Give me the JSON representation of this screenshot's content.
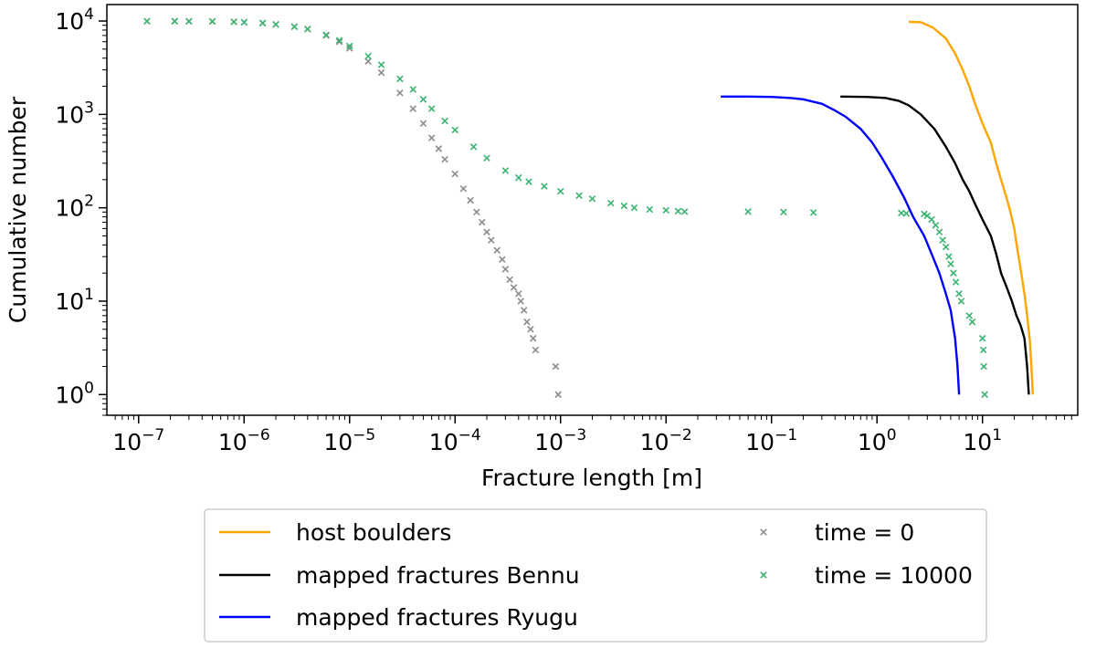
{
  "chart_data": {
    "type": "line",
    "title": "",
    "xlabel": "Fracture length [m]",
    "ylabel": "Cumulative number",
    "xscale": "log",
    "yscale": "log",
    "xlim": [
      5e-08,
      80
    ],
    "ylim": [
      0.6,
      15000
    ],
    "x_ticks": [
      {
        "value": 1e-07,
        "base": "10",
        "exp": "−7"
      },
      {
        "value": 1e-06,
        "base": "10",
        "exp": "−6"
      },
      {
        "value": 1e-05,
        "base": "10",
        "exp": "−5"
      },
      {
        "value": 0.0001,
        "base": "10",
        "exp": "−4"
      },
      {
        "value": 0.001,
        "base": "10",
        "exp": "−3"
      },
      {
        "value": 0.01,
        "base": "10",
        "exp": "−2"
      },
      {
        "value": 0.1,
        "base": "10",
        "exp": "−1"
      },
      {
        "value": 1,
        "base": "10",
        "exp": "0"
      },
      {
        "value": 10,
        "base": "10",
        "exp": "1"
      }
    ],
    "y_ticks": [
      {
        "value": 1,
        "base": "10",
        "exp": "0"
      },
      {
        "value": 10,
        "base": "10",
        "exp": "1"
      },
      {
        "value": 100,
        "base": "10",
        "exp": "2"
      },
      {
        "value": 1000,
        "base": "10",
        "exp": "3"
      },
      {
        "value": 10000,
        "base": "10",
        "exp": "4"
      }
    ],
    "grid": false,
    "legend_position": "below",
    "series": [
      {
        "name": "host boulders",
        "kind": "line",
        "color": "#ffa500",
        "points": [
          [
            2.0,
            9800
          ],
          [
            2.6,
            9700
          ],
          [
            3.4,
            8500
          ],
          [
            4.5,
            6500
          ],
          [
            5.5,
            4500
          ],
          [
            6.5,
            3000
          ],
          [
            7.5,
            2000
          ],
          [
            8.5,
            1300
          ],
          [
            10,
            800
          ],
          [
            12,
            500
          ],
          [
            13.5,
            300
          ],
          [
            15,
            200
          ],
          [
            16.5,
            140
          ],
          [
            18,
            100
          ],
          [
            20,
            60
          ],
          [
            21.5,
            35
          ],
          [
            23,
            22
          ],
          [
            25,
            12
          ],
          [
            26.5,
            7
          ],
          [
            28,
            4
          ],
          [
            29,
            2.2
          ],
          [
            30,
            1
          ]
        ]
      },
      {
        "name": "mapped fractures Bennu",
        "kind": "line",
        "color": "#000000",
        "points": [
          [
            0.45,
            1550
          ],
          [
            0.8,
            1540
          ],
          [
            1.2,
            1500
          ],
          [
            1.6,
            1400
          ],
          [
            2.0,
            1250
          ],
          [
            2.6,
            1000
          ],
          [
            3.5,
            700
          ],
          [
            4.5,
            450
          ],
          [
            5.5,
            300
          ],
          [
            6.5,
            200
          ],
          [
            7.5,
            150
          ],
          [
            8.5,
            110
          ],
          [
            10,
            75
          ],
          [
            12,
            50
          ],
          [
            13.5,
            32
          ],
          [
            15,
            20
          ],
          [
            17,
            14
          ],
          [
            19,
            10
          ],
          [
            21,
            7
          ],
          [
            23,
            5.5
          ],
          [
            25,
            4
          ],
          [
            26.5,
            2
          ],
          [
            27.5,
            1
          ]
        ]
      },
      {
        "name": "mapped fractures Ryugu",
        "kind": "line",
        "color": "#0000ff",
        "points": [
          [
            0.033,
            1550
          ],
          [
            0.06,
            1550
          ],
          [
            0.1,
            1540
          ],
          [
            0.15,
            1500
          ],
          [
            0.2,
            1450
          ],
          [
            0.3,
            1300
          ],
          [
            0.4,
            1100
          ],
          [
            0.5,
            950
          ],
          [
            0.7,
            700
          ],
          [
            0.9,
            500
          ],
          [
            1.1,
            350
          ],
          [
            1.4,
            220
          ],
          [
            1.8,
            130
          ],
          [
            2.2,
            80
          ],
          [
            2.8,
            50
          ],
          [
            3.3,
            32
          ],
          [
            3.9,
            20
          ],
          [
            4.5,
            12
          ],
          [
            5.0,
            8
          ],
          [
            5.5,
            4
          ],
          [
            5.8,
            2
          ],
          [
            6.0,
            1
          ]
        ]
      },
      {
        "name": "time = 0",
        "kind": "scatter",
        "color": "#8c8c8c",
        "points": [
          [
            1.2e-07,
            9950
          ],
          [
            2.2e-07,
            9940
          ],
          [
            3e-07,
            9930
          ],
          [
            5e-07,
            9900
          ],
          [
            8e-07,
            9800
          ],
          [
            1e-06,
            9700
          ],
          [
            1.5e-06,
            9500
          ],
          [
            2e-06,
            9200
          ],
          [
            3e-06,
            8700
          ],
          [
            4e-06,
            8200
          ],
          [
            6e-06,
            7000
          ],
          [
            8e-06,
            6000
          ],
          [
            1e-05,
            5100
          ],
          [
            1.5e-05,
            3700
          ],
          [
            2e-05,
            2800
          ],
          [
            3e-05,
            1700
          ],
          [
            4e-05,
            1150
          ],
          [
            5e-05,
            800
          ],
          [
            6e-05,
            560
          ],
          [
            7e-05,
            430
          ],
          [
            8e-05,
            330
          ],
          [
            0.0001,
            230
          ],
          [
            0.00012,
            160
          ],
          [
            0.00014,
            120
          ],
          [
            0.00016,
            90
          ],
          [
            0.00018,
            70
          ],
          [
            0.0002,
            55
          ],
          [
            0.00022,
            45
          ],
          [
            0.00025,
            35
          ],
          [
            0.00028,
            28
          ],
          [
            0.0003,
            22
          ],
          [
            0.00033,
            17
          ],
          [
            0.00036,
            14
          ],
          [
            0.0004,
            12
          ],
          [
            0.00042,
            10
          ],
          [
            0.00045,
            8
          ],
          [
            0.00048,
            6
          ],
          [
            0.00052,
            5
          ],
          [
            0.00055,
            4
          ],
          [
            0.00058,
            3
          ],
          [
            0.0009,
            2
          ],
          [
            0.00095,
            1
          ]
        ]
      },
      {
        "name": "time = 10000",
        "kind": "scatter",
        "color": "#3cb371",
        "points": [
          [
            1.2e-07,
            9950
          ],
          [
            2.2e-07,
            9940
          ],
          [
            3e-07,
            9930
          ],
          [
            5e-07,
            9900
          ],
          [
            8e-07,
            9800
          ],
          [
            1e-06,
            9700
          ],
          [
            1.5e-06,
            9500
          ],
          [
            2e-06,
            9200
          ],
          [
            3e-06,
            8700
          ],
          [
            4e-06,
            8200
          ],
          [
            6e-06,
            7100
          ],
          [
            8e-06,
            6200
          ],
          [
            1e-05,
            5400
          ],
          [
            1.5e-05,
            4200
          ],
          [
            2e-05,
            3400
          ],
          [
            3e-05,
            2400
          ],
          [
            4e-05,
            1850
          ],
          [
            5e-05,
            1450
          ],
          [
            6e-05,
            1150
          ],
          [
            8e-05,
            850
          ],
          [
            0.0001,
            680
          ],
          [
            0.00015,
            450
          ],
          [
            0.0002,
            340
          ],
          [
            0.0003,
            250
          ],
          [
            0.0004,
            210
          ],
          [
            0.0005,
            190
          ],
          [
            0.0007,
            170
          ],
          [
            0.001,
            150
          ],
          [
            0.0015,
            135
          ],
          [
            0.002,
            125
          ],
          [
            0.003,
            112
          ],
          [
            0.004,
            105
          ],
          [
            0.005,
            100
          ],
          [
            0.007,
            96
          ],
          [
            0.01,
            94
          ],
          [
            0.013,
            92
          ],
          [
            0.015,
            91
          ],
          [
            0.06,
            91
          ],
          [
            0.13,
            90
          ],
          [
            0.25,
            89
          ],
          [
            1.7,
            88
          ],
          [
            1.9,
            87
          ],
          [
            2.8,
            86
          ],
          [
            3.0,
            82
          ],
          [
            3.3,
            75
          ],
          [
            3.6,
            65
          ],
          [
            3.9,
            55
          ],
          [
            4.2,
            45
          ],
          [
            4.5,
            38
          ],
          [
            4.8,
            30
          ],
          [
            5.0,
            25
          ],
          [
            5.3,
            20
          ],
          [
            5.6,
            16
          ],
          [
            6.0,
            12
          ],
          [
            6.3,
            10
          ],
          [
            7.5,
            7
          ],
          [
            8,
            6
          ],
          [
            10,
            4
          ],
          [
            10.2,
            3
          ],
          [
            10.3,
            2
          ],
          [
            10.5,
            1
          ]
        ]
      }
    ]
  }
}
